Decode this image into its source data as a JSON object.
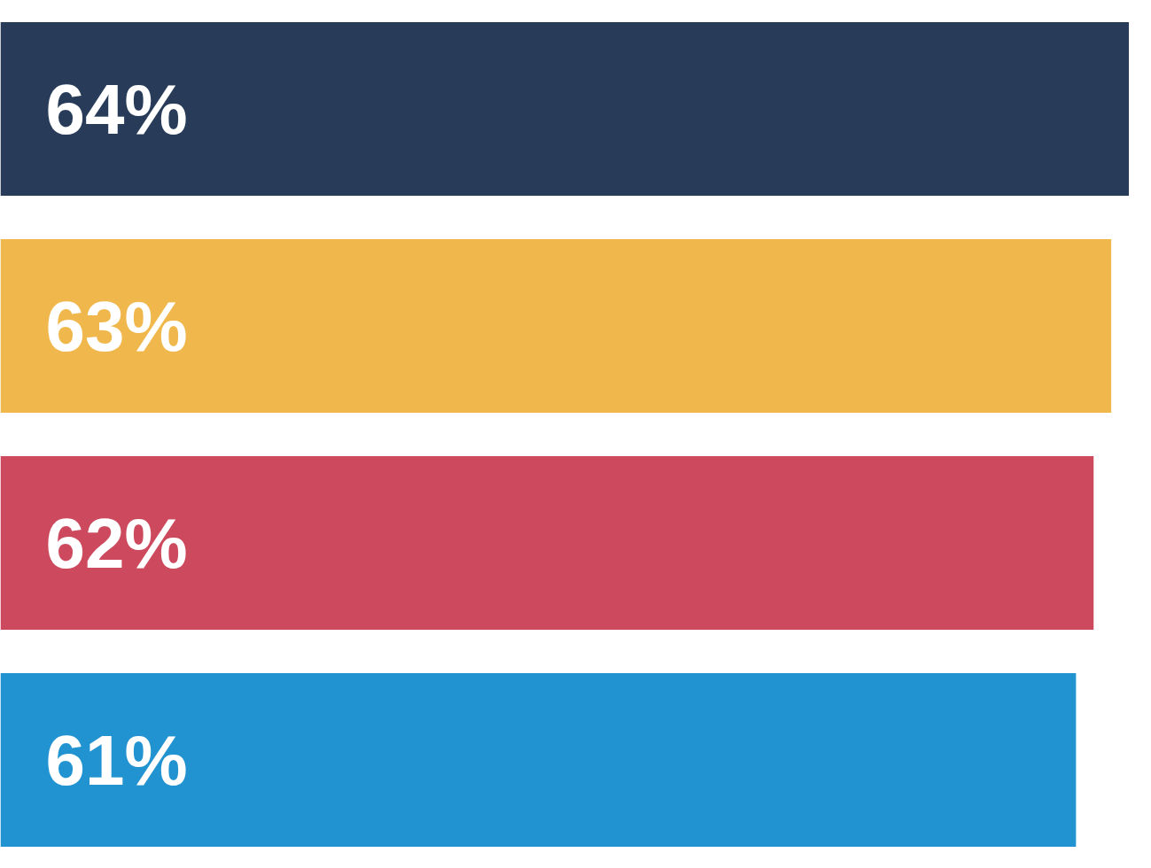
{
  "chart_data": {
    "type": "bar",
    "orientation": "horizontal",
    "categories": [
      null,
      null,
      null,
      null
    ],
    "values": [
      64,
      63,
      62,
      61
    ],
    "colors": [
      "#283c5a",
      "#f0b84c",
      "#cd4a5e",
      "#2193d1"
    ],
    "data_labels": true,
    "value_labels": [
      "64%",
      "63%",
      "62%",
      "61%"
    ],
    "grid": false,
    "tick_labels": false
  }
}
